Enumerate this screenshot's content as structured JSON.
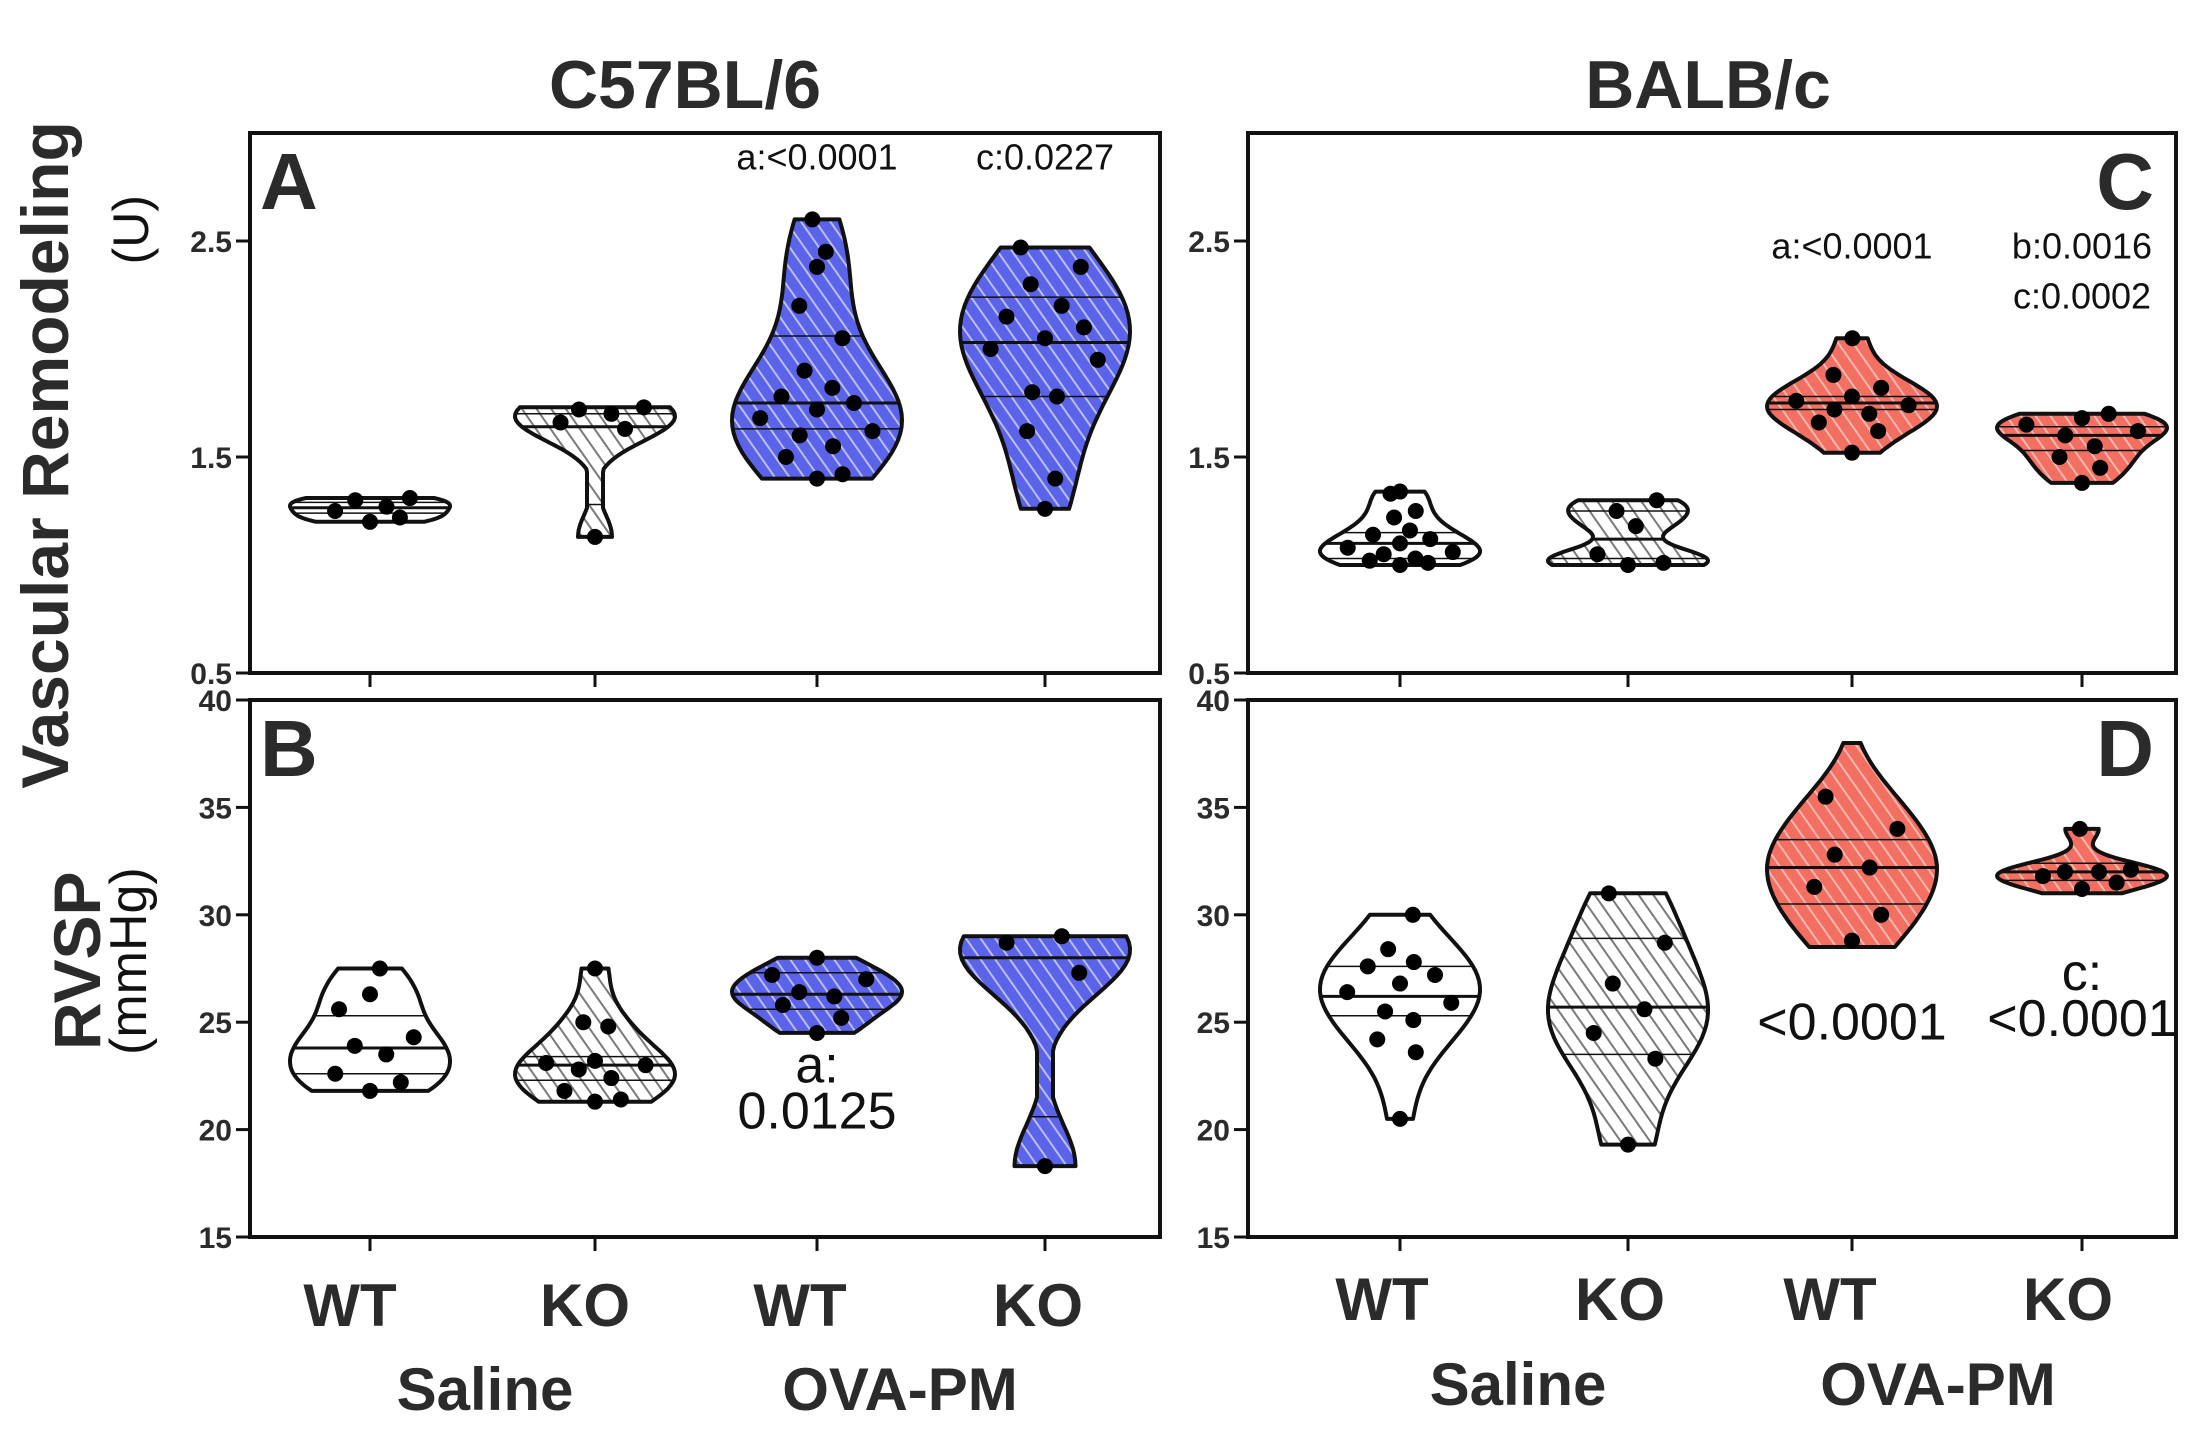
{
  "colors": {
    "saline": "#ffffff",
    "saline_hatch": "#7a7a7a",
    "ova_c57": "#5b63e8",
    "ova_c57_hatch": "#b9bdf5",
    "ova_balb": "#f26f62",
    "ova_balb_hatch": "#f7b7ae",
    "outline": "#111111",
    "dot": "#000000"
  },
  "x_groups": {
    "labels": [
      "WT",
      "KO",
      "WT",
      "KO"
    ],
    "conditions": [
      "Saline",
      "OVA-PM"
    ]
  },
  "chart_data": [
    {
      "id": "A",
      "panel_label": "A",
      "strain": "C57BL/6",
      "type": "violin",
      "ylabel_main": "Vascular Remodeling",
      "ylabel_unit": "(U)",
      "yticks": [
        "0.5",
        "1.5",
        "2.5"
      ],
      "ylim": [
        0.5,
        3.0
      ],
      "groups": [
        {
          "label": "WT",
          "condition": "Saline",
          "min": 1.2,
          "max": 1.31,
          "median": 1.265,
          "q1": 1.24,
          "q3": 1.29,
          "points": [
            1.2,
            1.22,
            1.25,
            1.27,
            1.3,
            1.31
          ],
          "color": "saline",
          "hatched": false
        },
        {
          "label": "KO",
          "condition": "Saline",
          "min": 1.13,
          "max": 1.73,
          "median": 1.64,
          "q1": 1.28,
          "q3": 1.7,
          "points": [
            1.13,
            1.63,
            1.66,
            1.7,
            1.72,
            1.73
          ],
          "color": "saline",
          "hatched": true
        },
        {
          "label": "WT",
          "condition": "OVA-PM",
          "min": 1.4,
          "max": 2.6,
          "median": 1.75,
          "q1": 1.63,
          "q3": 2.06,
          "points": [
            1.4,
            1.42,
            1.5,
            1.55,
            1.6,
            1.62,
            1.68,
            1.72,
            1.75,
            1.78,
            1.82,
            1.9,
            2.05,
            2.2,
            2.38,
            2.45,
            2.6
          ],
          "color": "ova",
          "hatched": true
        },
        {
          "label": "KO",
          "condition": "OVA-PM",
          "min": 1.26,
          "max": 2.47,
          "median": 2.03,
          "q1": 1.78,
          "q3": 2.24,
          "points": [
            1.26,
            1.4,
            1.62,
            1.78,
            1.8,
            1.95,
            2.0,
            2.05,
            2.1,
            2.15,
            2.2,
            2.3,
            2.38,
            2.47
          ],
          "color": "ova",
          "hatched": true
        }
      ],
      "annotations": [
        {
          "group": 2,
          "lines": [
            "a:<0.0001"
          ],
          "y": 2.83,
          "size": "small"
        },
        {
          "group": 3,
          "lines": [
            "c:0.0227"
          ],
          "y": 2.83,
          "size": "small"
        }
      ]
    },
    {
      "id": "B",
      "panel_label": "B",
      "strain": "C57BL/6",
      "type": "violin",
      "ylabel_main": "RVSP",
      "ylabel_unit": "(mmHg)",
      "yticks": [
        "15",
        "20",
        "25",
        "30",
        "35",
        "40"
      ],
      "ylim": [
        15,
        40
      ],
      "groups": [
        {
          "label": "WT",
          "condition": "Saline",
          "min": 21.8,
          "max": 27.5,
          "median": 23.8,
          "q1": 22.6,
          "q3": 25.3,
          "points": [
            21.8,
            22.2,
            22.6,
            23.5,
            23.9,
            24.3,
            25.6,
            26.3,
            27.5
          ],
          "color": "saline",
          "hatched": false
        },
        {
          "label": "KO",
          "condition": "Saline",
          "min": 21.3,
          "max": 27.5,
          "median": 23.0,
          "q1": 22.3,
          "q3": 23.4,
          "points": [
            21.3,
            21.4,
            21.8,
            22.4,
            22.8,
            23.0,
            23.1,
            23.2,
            24.8,
            25.0,
            27.5
          ],
          "color": "saline",
          "hatched": true
        },
        {
          "label": "WT",
          "condition": "OVA-PM",
          "min": 24.5,
          "max": 28.0,
          "median": 26.3,
          "q1": 25.6,
          "q3": 27.3,
          "points": [
            24.5,
            25.2,
            25.8,
            26.2,
            26.4,
            27.0,
            27.2,
            28.0
          ],
          "color": "ova",
          "hatched": true
        },
        {
          "label": "KO",
          "condition": "OVA-PM",
          "min": 18.3,
          "max": 29.0,
          "median": 28.0,
          "q1": 20.6,
          "q3": 29.0,
          "points": [
            18.3,
            27.3,
            28.7,
            29.0
          ],
          "color": "ova",
          "hatched": true
        }
      ],
      "annotations": [
        {
          "group": 2,
          "lines": [
            "a:",
            "0.0125"
          ],
          "y": 22.2,
          "size": "large"
        }
      ]
    },
    {
      "id": "C",
      "panel_label": "C",
      "strain": "BALB/c",
      "type": "violin",
      "ylabel_main": "",
      "ylabel_unit": "",
      "yticks": [
        "0.5",
        "1.5",
        "2.5"
      ],
      "ylim": [
        0.5,
        3.0
      ],
      "groups": [
        {
          "label": "WT",
          "condition": "Saline",
          "min": 1.0,
          "max": 1.34,
          "median": 1.1,
          "q1": 1.03,
          "q3": 1.15,
          "points": [
            1.0,
            1.01,
            1.02,
            1.03,
            1.05,
            1.06,
            1.08,
            1.1,
            1.12,
            1.14,
            1.16,
            1.22,
            1.25,
            1.33,
            1.34
          ],
          "color": "saline",
          "hatched": false
        },
        {
          "label": "KO",
          "condition": "Saline",
          "min": 1.0,
          "max": 1.3,
          "median": 1.12,
          "q1": 1.03,
          "q3": 1.25,
          "points": [
            1.0,
            1.01,
            1.05,
            1.18,
            1.25,
            1.3
          ],
          "color": "saline",
          "hatched": true
        },
        {
          "label": "WT",
          "condition": "OVA-PM",
          "min": 1.52,
          "max": 2.05,
          "median": 1.75,
          "q1": 1.72,
          "q3": 1.78,
          "points": [
            1.52,
            1.62,
            1.66,
            1.7,
            1.72,
            1.74,
            1.76,
            1.78,
            1.82,
            1.88,
            2.05
          ],
          "color": "ova",
          "hatched": true
        },
        {
          "label": "KO",
          "condition": "OVA-PM",
          "min": 1.38,
          "max": 1.7,
          "median": 1.6,
          "q1": 1.53,
          "q3": 1.64,
          "points": [
            1.38,
            1.45,
            1.5,
            1.55,
            1.6,
            1.62,
            1.65,
            1.68,
            1.7
          ],
          "color": "ova",
          "hatched": true
        }
      ],
      "annotations": [
        {
          "group": 2,
          "lines": [
            "a:<0.0001"
          ],
          "y": 2.42,
          "size": "small"
        },
        {
          "group": 3,
          "lines": [
            "b:0.0016",
            "c:0.0002"
          ],
          "y": 2.42,
          "size": "small"
        }
      ]
    },
    {
      "id": "D",
      "panel_label": "D",
      "strain": "BALB/c",
      "type": "violin",
      "ylabel_main": "",
      "ylabel_unit": "",
      "yticks": [
        "15",
        "20",
        "25",
        "30",
        "35",
        "40"
      ],
      "ylim": [
        15,
        40
      ],
      "groups": [
        {
          "label": "WT",
          "condition": "Saline",
          "min": 20.5,
          "max": 30.0,
          "median": 26.2,
          "q1": 25.3,
          "q3": 27.6,
          "points": [
            20.5,
            23.6,
            24.2,
            25.1,
            25.5,
            25.9,
            26.4,
            26.8,
            27.2,
            27.6,
            27.8,
            28.4,
            30.0
          ],
          "color": "saline",
          "hatched": false
        },
        {
          "label": "KO",
          "condition": "Saline",
          "min": 19.3,
          "max": 31.0,
          "median": 25.7,
          "q1": 23.5,
          "q3": 28.9,
          "points": [
            19.3,
            23.3,
            24.5,
            25.6,
            26.8,
            28.7,
            31.0
          ],
          "color": "saline",
          "hatched": true
        },
        {
          "label": "WT",
          "condition": "OVA-PM",
          "min": 28.5,
          "max": 38.0,
          "median": 32.2,
          "q1": 30.5,
          "q3": 33.5,
          "points": [
            28.8,
            30.0,
            31.3,
            32.2,
            32.8,
            34.0,
            35.5
          ],
          "color": "ova",
          "hatched": true
        },
        {
          "label": "KO",
          "condition": "OVA-PM",
          "min": 31.0,
          "max": 34.0,
          "median": 32.0,
          "q1": 31.6,
          "q3": 32.4,
          "points": [
            31.2,
            31.5,
            31.8,
            32.0,
            32.0,
            32.1,
            34.0
          ],
          "color": "ova",
          "hatched": true
        }
      ],
      "annotations": [
        {
          "group": 2,
          "lines": [
            "<0.0001"
          ],
          "y": 24.2,
          "size": "large"
        },
        {
          "group": 3,
          "lines": [
            "c:",
            "<0.0001"
          ],
          "y": 26.5,
          "size": "large"
        }
      ]
    }
  ]
}
